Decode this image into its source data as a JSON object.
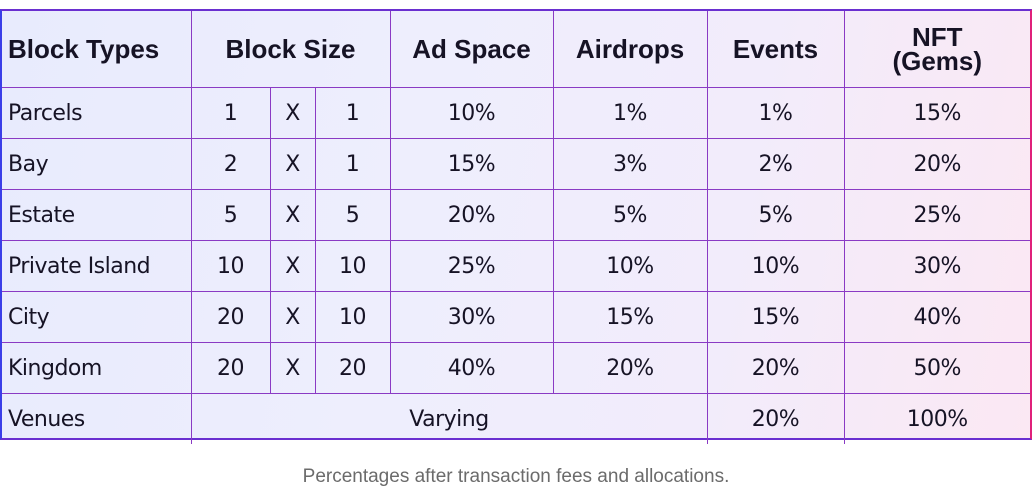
{
  "table": {
    "headers": {
      "block_types": "Block Types",
      "block_size": "Block Size",
      "ad_space": "Ad Space",
      "airdrops": "Airdrops",
      "events": "Events",
      "nft_line1": "NFT",
      "nft_line2": "(Gems)"
    },
    "rows": [
      {
        "name": "Parcels",
        "w": "1",
        "x": "X",
        "h": "1",
        "ad": "10%",
        "air": "1%",
        "events": "1%",
        "nft": "15%"
      },
      {
        "name": "Bay",
        "w": "2",
        "x": "X",
        "h": "1",
        "ad": "15%",
        "air": "3%",
        "events": "2%",
        "nft": "20%"
      },
      {
        "name": "Estate",
        "w": "5",
        "x": "X",
        "h": "5",
        "ad": "20%",
        "air": "5%",
        "events": "5%",
        "nft": "25%"
      },
      {
        "name": "Private Island",
        "w": "10",
        "x": "X",
        "h": "10",
        "ad": "25%",
        "air": "10%",
        "events": "10%",
        "nft": "30%"
      },
      {
        "name": "City",
        "w": "20",
        "x": "X",
        "h": "10",
        "ad": "30%",
        "air": "15%",
        "events": "15%",
        "nft": "40%"
      },
      {
        "name": "Kingdom",
        "w": "20",
        "x": "X",
        "h": "20",
        "ad": "40%",
        "air": "20%",
        "events": "20%",
        "nft": "50%"
      }
    ],
    "venues": {
      "name": "Venues",
      "varying": "Varying",
      "events": "20%",
      "nft": "100%"
    }
  },
  "caption": "Percentages after transaction fees and allocations.",
  "colors": {
    "border": "#8a3ac4",
    "accent_left": "#3a3ee8",
    "accent_right": "#e0207a",
    "caption": "#6b6b6b"
  }
}
